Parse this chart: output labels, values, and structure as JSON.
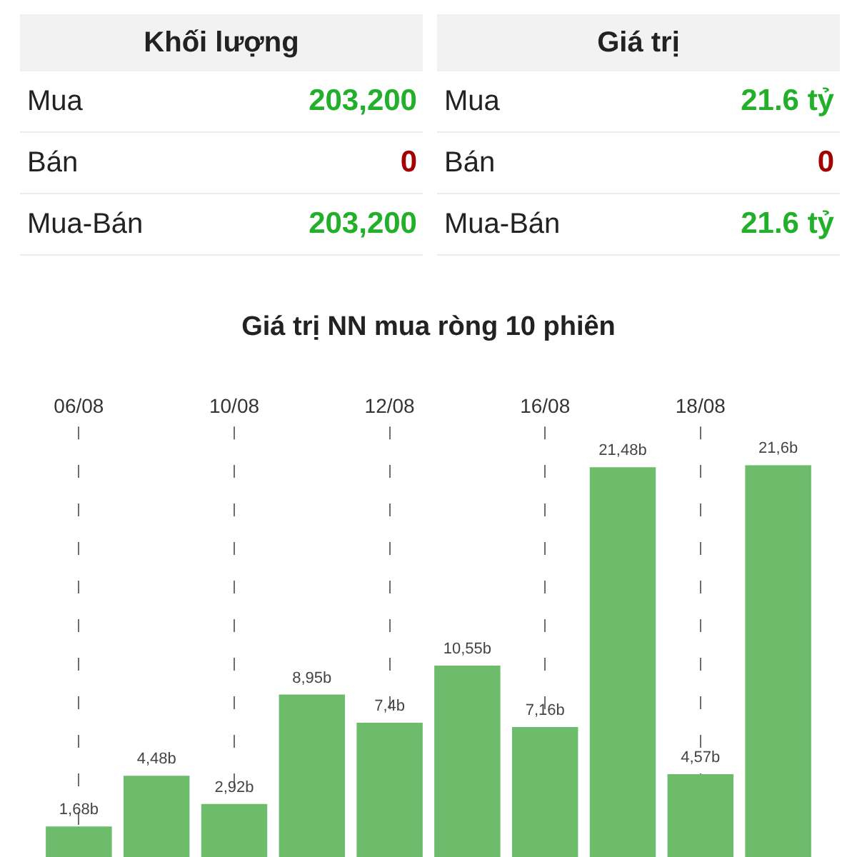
{
  "chart_data": [
    {
      "type": "other",
      "title": "Khối lượng",
      "categories": [
        "Mua",
        "Bán",
        "Mua-Bán"
      ],
      "value_labels": [
        "203,200",
        "0",
        "203,200"
      ],
      "colors": [
        "#22b02a",
        "#a30000",
        "#22b02a"
      ]
    },
    {
      "type": "other",
      "title": "Giá trị",
      "categories": [
        "Mua",
        "Bán",
        "Mua-Bán"
      ],
      "value_labels": [
        "21.6 tỷ",
        "0",
        "21.6 tỷ"
      ],
      "colors": [
        "#22b02a",
        "#a30000",
        "#22b02a"
      ]
    },
    {
      "type": "bar",
      "title": "Giá trị NN mua ròng 10 phiên",
      "categories": [
        "06/08",
        null,
        "10/08",
        null,
        "12/08",
        null,
        "16/08",
        null,
        "18/08",
        null
      ],
      "values": [
        1.68,
        4.48,
        2.92,
        8.95,
        7.4,
        10.55,
        7.16,
        21.48,
        4.57,
        21.6
      ],
      "value_labels": [
        "1,68b",
        "4,48b",
        "2,92b",
        "8,95b",
        "7,4b",
        "10,55b",
        "7,16b",
        "21,48b",
        "4,57b",
        "21,6b"
      ],
      "color": "#6dbc6b",
      "grid": "x",
      "tick_labels": "x"
    }
  ]
}
